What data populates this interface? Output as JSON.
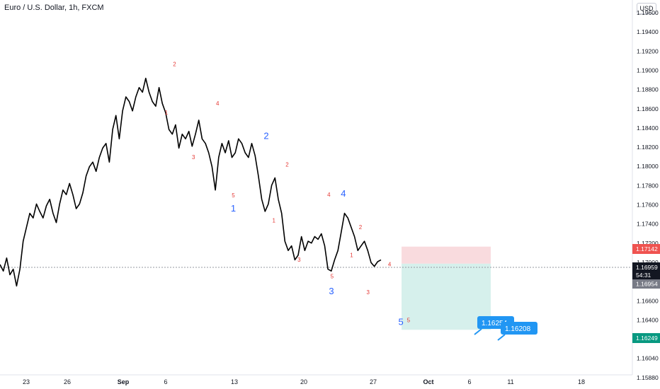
{
  "header": {
    "title": "Euro / U.S. Dollar, 1h, FXCM",
    "currency_button": "USD"
  },
  "colors": {
    "price_line": "#000000",
    "wave_major": "#2962ff",
    "wave_minor": "#e53935",
    "stop_zone": "#f8d7da",
    "target_zone": "#d4efeb",
    "badge_blue": "#2196f3",
    "badge_red": "#ef5350",
    "badge_dark": "#131722",
    "badge_gray": "#787b86",
    "badge_green": "#089981"
  },
  "chart_data": {
    "type": "line",
    "title": "Euro / U.S. Dollar, 1h, FXCM",
    "ylim": [
      1.1578,
      1.1973
    ],
    "y_ticks": [
      "1.19600",
      "1.19400",
      "1.19200",
      "1.19000",
      "1.18800",
      "1.18600",
      "1.18400",
      "1.18200",
      "1.18000",
      "1.17800",
      "1.17600",
      "1.17400",
      "1.17200",
      "1.17000",
      "1.16800",
      "1.16600",
      "1.16400",
      "1.16200",
      "1.16040",
      "1.15880"
    ],
    "x_ticks": [
      "23",
      "26",
      "Sep",
      "6",
      "13",
      "20",
      "27",
      "Oct",
      "6",
      "11",
      "18"
    ],
    "series": [
      {
        "values": [
          1.1695,
          1.1688,
          1.1702,
          1.1684,
          1.169,
          1.1672,
          1.169,
          1.172,
          1.1735,
          1.175,
          1.1745,
          1.176,
          1.1752,
          1.1745,
          1.1758,
          1.1765,
          1.175,
          1.174,
          1.176,
          1.1775,
          1.177,
          1.1782,
          1.177,
          1.1755,
          1.176,
          1.1772,
          1.179,
          1.18,
          1.1805,
          1.1795,
          1.181,
          1.182,
          1.1825,
          1.1805,
          1.184,
          1.1855,
          1.183,
          1.186,
          1.1875,
          1.187,
          1.186,
          1.1875,
          1.1885,
          1.188,
          1.1895,
          1.188,
          1.187,
          1.1865,
          1.1885,
          1.1868,
          1.1858,
          1.184,
          1.1835,
          1.1845,
          1.182,
          1.1835,
          1.183,
          1.1838,
          1.1822,
          1.1835,
          1.185,
          1.183,
          1.1825,
          1.1815,
          1.18,
          1.1775,
          1.181,
          1.1825,
          1.1815,
          1.1828,
          1.181,
          1.1815,
          1.183,
          1.1825,
          1.1815,
          1.181,
          1.1825,
          1.1812,
          1.179,
          1.1765,
          1.1752,
          1.176,
          1.178,
          1.1788,
          1.1765,
          1.175,
          1.172,
          1.171,
          1.1715,
          1.17,
          1.1705,
          1.1725,
          1.171,
          1.172,
          1.1718,
          1.1725,
          1.1722,
          1.1728,
          1.1715,
          1.169,
          1.1688,
          1.17,
          1.171,
          1.173,
          1.175,
          1.1745,
          1.1735,
          1.1725,
          1.171,
          1.1715,
          1.172,
          1.171,
          1.1697,
          1.1693,
          1.1698,
          1.17
        ],
        "minutes_left": "54:31"
      }
    ],
    "current_price": "1.16959",
    "prev_close_label": "1.16954",
    "stop_price": "1.17142",
    "target_price": "1.16249",
    "position": {
      "entry": 1.16959,
      "stop": 1.17142,
      "target": 1.16249,
      "x_start": 0.635,
      "x_end": 0.776
    },
    "callouts": [
      "1.16254",
      "1.16208"
    ],
    "wave_labels": [
      {
        "text": "1",
        "x": 0.369,
        "y": 1.1752,
        "major": true
      },
      {
        "text": "2",
        "x": 0.421,
        "y": 1.183,
        "major": true
      },
      {
        "text": "3",
        "x": 0.524,
        "y": 1.1663,
        "major": true
      },
      {
        "text": "4",
        "x": 0.543,
        "y": 1.1768,
        "major": true
      },
      {
        "text": "5",
        "x": 0.634,
        "y": 1.163,
        "major": true
      },
      {
        "text": "1",
        "x": 0.263,
        "y": 1.1856,
        "major": false
      },
      {
        "text": "2",
        "x": 0.276,
        "y": 1.1908,
        "major": false
      },
      {
        "text": "3",
        "x": 0.306,
        "y": 1.1808,
        "major": false
      },
      {
        "text": "4",
        "x": 0.344,
        "y": 1.1866,
        "major": false
      },
      {
        "text": "5",
        "x": 0.369,
        "y": 1.1767,
        "major": false
      },
      {
        "text": "1",
        "x": 0.433,
        "y": 1.174,
        "major": false
      },
      {
        "text": "2",
        "x": 0.454,
        "y": 1.18,
        "major": false
      },
      {
        "text": "3",
        "x": 0.473,
        "y": 1.1698,
        "major": false
      },
      {
        "text": "4",
        "x": 0.52,
        "y": 1.1768,
        "major": false
      },
      {
        "text": "5",
        "x": 0.525,
        "y": 1.168,
        "major": false
      },
      {
        "text": "1",
        "x": 0.556,
        "y": 1.1703,
        "major": false
      },
      {
        "text": "2",
        "x": 0.57,
        "y": 1.1733,
        "major": false
      },
      {
        "text": "3",
        "x": 0.582,
        "y": 1.1663,
        "major": false
      },
      {
        "text": "4",
        "x": 0.616,
        "y": 1.1693,
        "major": false
      },
      {
        "text": "5",
        "x": 0.646,
        "y": 1.1633,
        "major": false
      }
    ]
  }
}
